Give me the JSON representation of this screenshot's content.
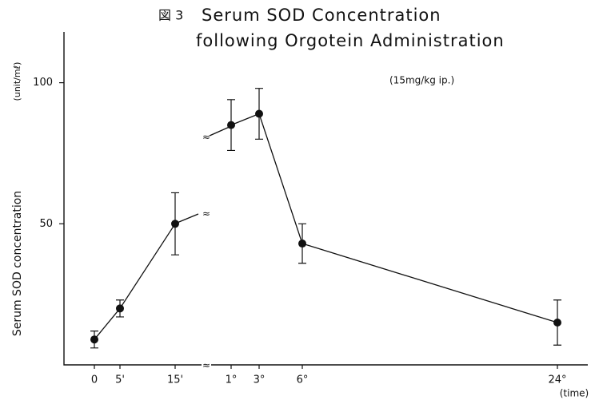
{
  "chart_data": {
    "type": "line",
    "figure_label": "図 3",
    "title": "Serum SOD Concentration",
    "subtitle": "following Orgotein Administration",
    "annotation": "(15mg/kg ip.)",
    "y_label": "Serum SOD concentration",
    "y_unit": "(unit/mℓ)",
    "x_label": "(time)",
    "categories": [
      "0",
      "5'",
      "15'",
      "1°",
      "3°",
      "6°",
      "24°"
    ],
    "series": [
      {
        "name": "Serum SOD",
        "color": "#111111",
        "values": [
          9,
          20,
          50,
          85,
          89,
          43,
          15
        ],
        "error": [
          3,
          3,
          11,
          9,
          9,
          7,
          8
        ]
      }
    ],
    "ylim": [
      0,
      118
    ],
    "yticks": [
      50,
      100
    ]
  }
}
